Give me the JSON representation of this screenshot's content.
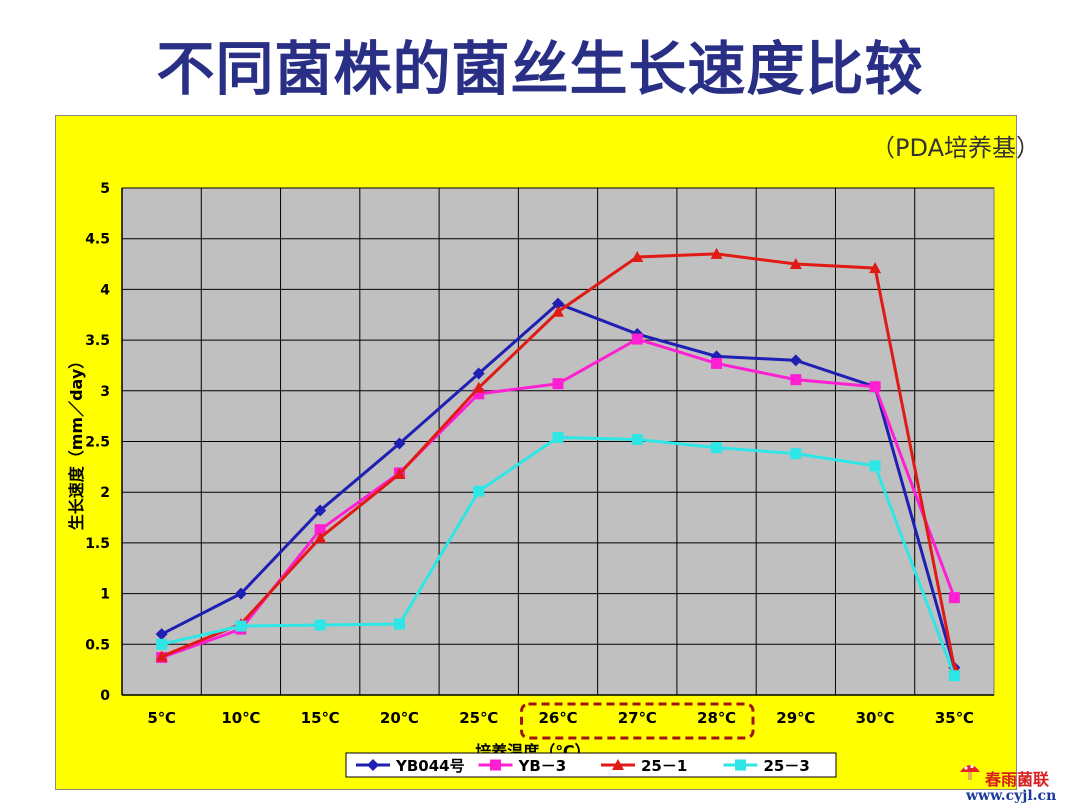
{
  "title": "不同菌株的菌丝生长速度比较",
  "media_note": "（PDA培养基）",
  "watermark": {
    "name": "春雨菌联",
    "url": "www.cyjl.cn"
  },
  "chart_data": {
    "type": "line",
    "title": "",
    "xlabel": "培养温度（℃）",
    "ylabel": "生长速度（mm／day）",
    "categories": [
      "5℃",
      "10℃",
      "15℃",
      "20℃",
      "25℃",
      "26℃",
      "27℃",
      "28℃",
      "29℃",
      "30℃",
      "35℃"
    ],
    "ylim": [
      0,
      5
    ],
    "yticks": [
      "0",
      "0.5",
      "1",
      "1.5",
      "2",
      "2.5",
      "3",
      "3.5",
      "4",
      "4.5",
      "5"
    ],
    "grid": true,
    "legend_position": "bottom",
    "highlight_categories": [
      "26℃",
      "27℃",
      "28℃"
    ],
    "series": [
      {
        "name": "YB044号",
        "color": "#1f1fb4",
        "marker": "diamond",
        "values": [
          0.6,
          1.0,
          1.82,
          2.48,
          3.17,
          3.86,
          3.56,
          3.34,
          3.3,
          3.04,
          0.27
        ]
      },
      {
        "name": "YB－3",
        "color": "#ff1fd2",
        "marker": "square",
        "values": [
          0.37,
          0.65,
          1.63,
          2.19,
          2.97,
          3.07,
          3.51,
          3.27,
          3.11,
          3.04,
          0.96
        ]
      },
      {
        "name": "25－1",
        "color": "#e01a14",
        "marker": "triangle",
        "values": [
          0.38,
          0.7,
          1.55,
          2.18,
          3.03,
          3.78,
          4.32,
          4.35,
          4.25,
          4.21,
          0.27
        ]
      },
      {
        "name": "25－3",
        "color": "#2ee6e6",
        "marker": "square",
        "values": [
          0.5,
          0.68,
          0.69,
          0.7,
          2.01,
          2.54,
          2.52,
          2.44,
          2.38,
          2.26,
          0.19
        ]
      }
    ]
  }
}
